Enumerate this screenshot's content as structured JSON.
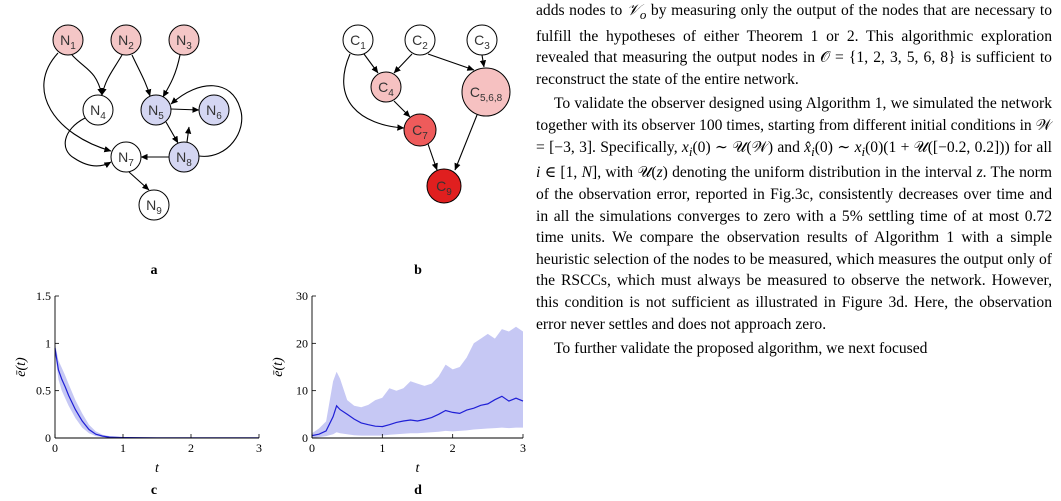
{
  "figure": {
    "panel_a": {
      "letter": "a",
      "nodes": [
        {
          "base": "N",
          "sub": "1",
          "fill": "#f4c6c6"
        },
        {
          "base": "N",
          "sub": "2",
          "fill": "#f4c6c6"
        },
        {
          "base": "N",
          "sub": "3",
          "fill": "#f4c6c6"
        },
        {
          "base": "N",
          "sub": "4",
          "fill": "#ffffff"
        },
        {
          "base": "N",
          "sub": "5",
          "fill": "#d4d6f2"
        },
        {
          "base": "N",
          "sub": "6",
          "fill": "#d4d6f2"
        },
        {
          "base": "N",
          "sub": "7",
          "fill": "#ffffff"
        },
        {
          "base": "N",
          "sub": "8",
          "fill": "#d4d6f2"
        },
        {
          "base": "N",
          "sub": "9",
          "fill": "#ffffff"
        }
      ]
    },
    "panel_b": {
      "letter": "b",
      "nodes": [
        {
          "base": "C",
          "sub": "1",
          "fill": "#ffffff"
        },
        {
          "base": "C",
          "sub": "2",
          "fill": "#ffffff"
        },
        {
          "base": "C",
          "sub": "3",
          "fill": "#ffffff"
        },
        {
          "base": "C",
          "sub": "4",
          "fill": "#f6c1c1"
        },
        {
          "base": "C",
          "sub": "5,6,8",
          "fill": "#f6c1c1"
        },
        {
          "base": "C",
          "sub": "7",
          "fill": "#ee5b5b"
        },
        {
          "base": "C",
          "sub": "9",
          "fill": "#e01f1f"
        }
      ]
    },
    "panel_c": {
      "letter": "c"
    },
    "panel_d": {
      "letter": "d"
    }
  },
  "chart_data": [
    {
      "type": "area",
      "panel": "c",
      "xlabel": "t",
      "ylabel": "ē(t)",
      "xlim": [
        0,
        3
      ],
      "ylim": [
        0,
        1.5
      ],
      "xticks": [
        "0",
        "1",
        "2",
        "3"
      ],
      "yticks": [
        "0",
        "0.5",
        "1",
        "1.5"
      ],
      "colors": {
        "line": "#1f1fd6",
        "band": "#c6c8f4"
      },
      "mean": {
        "x": [
          0,
          0.05,
          0.1,
          0.15,
          0.2,
          0.3,
          0.4,
          0.5,
          0.6,
          0.7,
          0.8,
          1.0,
          1.5,
          2.0,
          2.5,
          3.0
        ],
        "y": [
          0.95,
          0.72,
          0.62,
          0.54,
          0.45,
          0.3,
          0.18,
          0.09,
          0.04,
          0.02,
          0.01,
          0.004,
          0.002,
          0.001,
          0.001,
          0.001
        ]
      },
      "band_upper": [
        1.0,
        0.82,
        0.74,
        0.66,
        0.57,
        0.4,
        0.26,
        0.14,
        0.07,
        0.035,
        0.02,
        0.008,
        0.003,
        0.002,
        0.001,
        0.001
      ],
      "band_lower": [
        0.9,
        0.62,
        0.5,
        0.42,
        0.34,
        0.21,
        0.11,
        0.05,
        0.02,
        0.01,
        0.004,
        0.002,
        0.001,
        0.0,
        0.0,
        0.0
      ]
    },
    {
      "type": "area",
      "panel": "d",
      "xlabel": "t",
      "ylabel": "ē(t)",
      "xlim": [
        0,
        3
      ],
      "ylim": [
        0,
        30
      ],
      "xticks": [
        "0",
        "1",
        "2",
        "3"
      ],
      "yticks": [
        "0",
        "10",
        "20",
        "30"
      ],
      "colors": {
        "line": "#1f1fd6",
        "band": "#c6c8f4"
      },
      "mean": {
        "x": [
          0,
          0.1,
          0.2,
          0.3,
          0.35,
          0.4,
          0.5,
          0.6,
          0.7,
          0.8,
          0.9,
          1.0,
          1.1,
          1.2,
          1.3,
          1.4,
          1.5,
          1.6,
          1.7,
          1.8,
          1.9,
          2.0,
          2.1,
          2.2,
          2.3,
          2.4,
          2.5,
          2.6,
          2.7,
          2.8,
          2.9,
          3.0
        ],
        "y": [
          0.5,
          0.8,
          1.5,
          4.5,
          6.8,
          6.0,
          5.0,
          4.0,
          3.2,
          2.8,
          2.5,
          2.4,
          2.8,
          3.3,
          3.6,
          3.8,
          3.6,
          3.9,
          4.3,
          5.0,
          5.8,
          5.4,
          5.2,
          5.9,
          6.3,
          6.9,
          7.2,
          8.1,
          8.8,
          7.8,
          8.4,
          7.8
        ]
      },
      "band_upper": [
        1.0,
        2.0,
        3.5,
        12.0,
        14.0,
        12.5,
        8.0,
        6.8,
        6.5,
        7.0,
        8.0,
        8.5,
        10.5,
        10.0,
        10.5,
        12.0,
        11.5,
        11.0,
        11.5,
        13.0,
        15.5,
        14.5,
        15.0,
        17.0,
        20.0,
        21.0,
        22.0,
        21.0,
        23.0,
        22.5,
        23.5,
        22.5
      ],
      "band_lower": [
        0.0,
        0.2,
        0.4,
        0.8,
        1.2,
        1.0,
        0.8,
        0.6,
        0.5,
        0.5,
        0.5,
        0.5,
        0.7,
        0.8,
        0.9,
        1.0,
        1.0,
        1.1,
        1.2,
        1.3,
        1.5,
        1.4,
        1.5,
        1.6,
        1.8,
        1.9,
        2.0,
        2.1,
        2.2,
        2.1,
        2.2,
        2.2
      ]
    }
  ],
  "text": {
    "p1": {
      "s1": "adds nodes to ",
      "m1": "𝒱",
      "m1sub": "o",
      "s2": " by measuring only the output of the nodes that are necessary to fulfill the hypotheses of either Theorem 1 or 2. This algorithmic exploration revealed that measuring the output nodes in ",
      "m2": "𝒪",
      "s3": " = {1, 2, 3, 5, 6, 8} is sufficient to reconstruct the state of the entire network."
    },
    "p2": {
      "s1": "To validate the observer designed using Algorithm 1, we simulated the network together with its observer 100 times, starting from different initial conditions in ",
      "m1": "𝒲",
      "s2": " = [−3, 3]. Specifically, ",
      "m2": "x",
      "m2sub": "i",
      "s3": "(0) ∼ 𝒰(𝒲) and ",
      "m3": "x̂",
      "m3sub": "i",
      "s4": "(0) ∼ ",
      "m4": "x",
      "m4sub": "i",
      "s5": "(0)(1 + 𝒰([−0.2, 0.2])) for all ",
      "m5": "i",
      "s6": " ∈ [1, ",
      "m6": "N",
      "s7": "], with 𝒰(",
      "m7": "z",
      "s8": ") denoting the uniform distribution in the interval ",
      "m8": "z",
      "s9": ". The norm of the observation error, reported in Fig.3c, consistently decreases over time and in all the simulations converges to zero with a 5% settling time of at most 0.72 time units. We compare the observation results of Algorithm 1 with a simple heuristic selection of the nodes to be measured, which measures the output only of the RSCCs, which must always be measured to observe the network. However, this condition is not sufficient as illustrated in Figure 3d. Here, the observation error never settles and does not approach zero."
    },
    "p3": "To further validate the proposed algorithm, we next focused"
  }
}
